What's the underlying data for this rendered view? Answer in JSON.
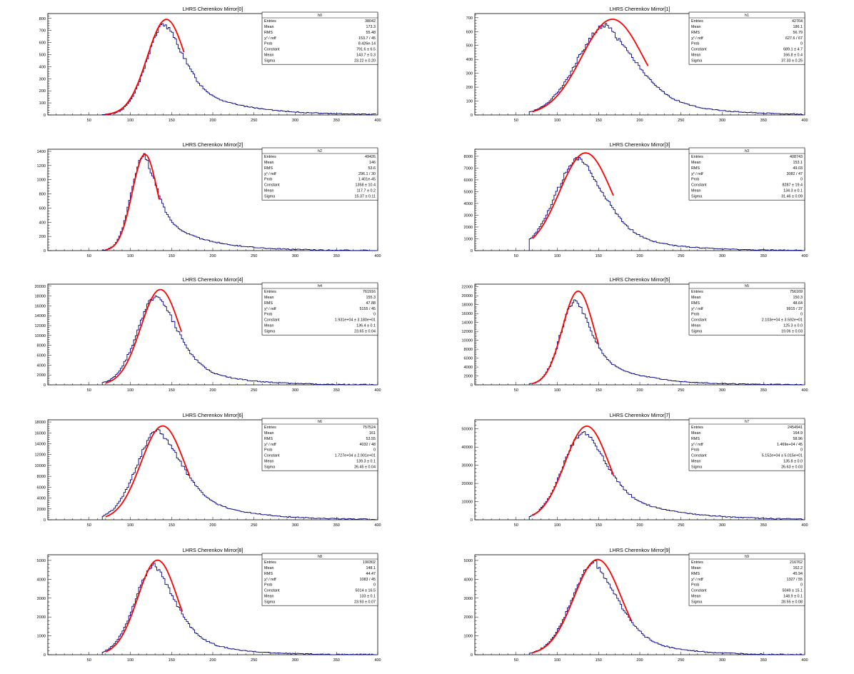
{
  "chart_data": [
    {
      "type": "histogram",
      "title": "LHRS Cherenkov Mirror[0]",
      "xlim": [
        0,
        400
      ],
      "xticks": [
        50,
        100,
        150,
        200,
        250,
        300,
        350,
        400
      ],
      "ylim": [
        0,
        840
      ],
      "yticks": [
        0,
        100,
        200,
        300,
        400,
        500,
        600,
        700,
        800
      ],
      "stats": {
        "name": "h0",
        "rows": [
          [
            "Entries",
            "38042"
          ],
          [
            "Mean",
            "173.3"
          ],
          [
            "RMS",
            "55.48"
          ],
          [
            "χ² / ndf",
            "153.7 / 45"
          ],
          [
            "Prob",
            "8.426e-14"
          ],
          [
            "Constant",
            "791.6 ± 6.5"
          ],
          [
            "Mean",
            "143.7 ± 0.3"
          ],
          [
            "Sigma",
            "23.22 ± 0.20"
          ]
        ]
      },
      "histogram": {
        "peak_x": 142,
        "peak_y": 752,
        "sigma_left": 22,
        "tail": 56
      },
      "fit": {
        "constant": 791.6,
        "mean": 143.7,
        "sigma": 23.22,
        "range": [
          70,
          165
        ]
      }
    },
    {
      "type": "histogram",
      "title": "LHRS Cherenkov Mirror[1]",
      "xlim": [
        0,
        400
      ],
      "xticks": [
        50,
        100,
        150,
        200,
        250,
        300,
        350,
        400
      ],
      "ylim": [
        0,
        730
      ],
      "yticks": [
        0,
        100,
        200,
        300,
        400,
        500,
        600,
        700
      ],
      "stats": {
        "name": "h1",
        "rows": [
          [
            "Entries",
            "42764"
          ],
          [
            "Mean",
            "186.1"
          ],
          [
            "RMS",
            "56.79"
          ],
          [
            "χ² / ndf",
            "627.6 / 67"
          ],
          [
            "Prob",
            "0"
          ],
          [
            "Constant",
            "689.1 ± 4.7"
          ],
          [
            "Mean",
            "166.8 ± 0.4"
          ],
          [
            "Sigma",
            "37.33 ± 0.25"
          ]
        ]
      },
      "histogram": {
        "peak_x": 160,
        "peak_y": 645,
        "sigma_left": 36,
        "tail": 58
      },
      "fit": {
        "constant": 689.1,
        "mean": 166.8,
        "sigma": 37.33,
        "range": [
          70,
          210
        ]
      }
    },
    {
      "type": "histogram",
      "title": "LHRS Cherenkov Mirror[2]",
      "xlim": [
        0,
        400
      ],
      "xticks": [
        50,
        100,
        150,
        200,
        250,
        300,
        350,
        400
      ],
      "ylim": [
        0,
        1430
      ],
      "yticks": [
        0,
        200,
        400,
        600,
        800,
        1000,
        1200,
        1400
      ],
      "stats": {
        "name": "h2",
        "rows": [
          [
            "Entries",
            "49426"
          ],
          [
            "Mean",
            "146"
          ],
          [
            "RMS",
            "53.6"
          ],
          [
            "χ² / ndf",
            "296.1 / 30"
          ],
          [
            "Prob",
            "1.401e-45"
          ],
          [
            "Constant",
            "1358 ± 10.4"
          ],
          [
            "Mean",
            "117.7 ± 0.2"
          ],
          [
            "Sigma",
            "15.37 ± 0.11"
          ]
        ]
      },
      "histogram": {
        "peak_x": 116,
        "peak_y": 1340,
        "sigma_left": 15,
        "tail": 48
      },
      "fit": {
        "constant": 1358,
        "mean": 117.7,
        "sigma": 15.37,
        "range": [
          70,
          135
        ]
      }
    },
    {
      "type": "histogram",
      "title": "LHRS Cherenkov Mirror[3]",
      "xlim": [
        0,
        400
      ],
      "xticks": [
        50,
        100,
        150,
        200,
        250,
        300,
        350,
        400
      ],
      "ylim": [
        0,
        8600
      ],
      "yticks": [
        0,
        1000,
        2000,
        3000,
        4000,
        5000,
        6000,
        7000,
        8000
      ],
      "stats": {
        "name": "h3",
        "rows": [
          [
            "Entries",
            "408743"
          ],
          [
            "Mean",
            "153.1"
          ],
          [
            "RMS",
            "49.03"
          ],
          [
            "χ² / ndf",
            "3082 / 47"
          ],
          [
            "Prob",
            "0"
          ],
          [
            "Constant",
            "8287 ± 19.4"
          ],
          [
            "Mean",
            "134.3 ± 0.1"
          ],
          [
            "Sigma",
            "31.46 ± 0.09"
          ]
        ]
      },
      "histogram": {
        "peak_x": 128,
        "peak_y": 7800,
        "sigma_left": 30,
        "tail": 50
      },
      "fit": {
        "constant": 8287,
        "mean": 134.3,
        "sigma": 31.46,
        "range": [
          70,
          168
        ]
      }
    },
    {
      "type": "histogram",
      "title": "LHRS Cherenkov Mirror[4]",
      "xlim": [
        0,
        400
      ],
      "xticks": [
        50,
        100,
        150,
        200,
        250,
        300,
        350,
        400
      ],
      "ylim": [
        0,
        20400
      ],
      "yticks": [
        0,
        2000,
        4000,
        6000,
        8000,
        10000,
        12000,
        14000,
        16000,
        18000,
        20000
      ],
      "stats": {
        "name": "h4",
        "rows": [
          [
            "Entries",
            "761916"
          ],
          [
            "Mean",
            "155.3"
          ],
          [
            "RMS",
            "47.88"
          ],
          [
            "χ² / ndf",
            "5155 / 45"
          ],
          [
            "Prob",
            "0"
          ],
          [
            "Constant",
            "1.931e+04 ± 3.180e+01"
          ],
          [
            "Mean",
            "136.4 ± 0.1"
          ],
          [
            "Sigma",
            "23.65 ± 0.04"
          ]
        ]
      },
      "histogram": {
        "peak_x": 133,
        "peak_y": 18200,
        "sigma_left": 24,
        "tail": 46
      },
      "fit": {
        "constant": 19310,
        "mean": 136.4,
        "sigma": 23.65,
        "range": [
          70,
          162
        ]
      }
    },
    {
      "type": "histogram",
      "title": "LHRS Cherenkov Mirror[5]",
      "xlim": [
        0,
        400
      ],
      "xticks": [
        50,
        100,
        150,
        200,
        250,
        300,
        350,
        400
      ],
      "ylim": [
        0,
        22600
      ],
      "yticks": [
        0,
        2000,
        4000,
        6000,
        8000,
        10000,
        12000,
        14000,
        16000,
        18000,
        20000,
        22000
      ],
      "stats": {
        "name": "h5",
        "rows": [
          [
            "Entries",
            "756169"
          ],
          [
            "Mean",
            "150.3"
          ],
          [
            "RMS",
            "48.64"
          ],
          [
            "χ² / ndf",
            "9915 / 37"
          ],
          [
            "Prob",
            "0"
          ],
          [
            "Constant",
            "2.103e+04 ± 3.592e+01"
          ],
          [
            "Mean",
            "125.3 ± 0.0"
          ],
          [
            "Sigma",
            "19.06 ± 0.03"
          ]
        ]
      },
      "histogram": {
        "peak_x": 122,
        "peak_y": 18800,
        "sigma_left": 18,
        "tail": 50
      },
      "fit": {
        "constant": 21030,
        "mean": 125.3,
        "sigma": 19.06,
        "range": [
          70,
          150
        ]
      }
    },
    {
      "type": "histogram",
      "title": "LHRS Cherenkov Mirror[6]",
      "xlim": [
        0,
        400
      ],
      "xticks": [
        50,
        100,
        150,
        200,
        250,
        300,
        350,
        400
      ],
      "ylim": [
        0,
        18400
      ],
      "yticks": [
        0,
        2000,
        4000,
        6000,
        8000,
        10000,
        12000,
        14000,
        16000,
        18000
      ],
      "stats": {
        "name": "h6",
        "rows": [
          [
            "Entries",
            "757524"
          ],
          [
            "Mean",
            "161"
          ],
          [
            "RMS",
            "53.55"
          ],
          [
            "χ² / ndf",
            "4032 / 48"
          ],
          [
            "Prob",
            "0"
          ],
          [
            "Constant",
            "1.727e+04 ± 2.901e+01"
          ],
          [
            "Mean",
            "139.3 ± 0.1"
          ],
          [
            "Sigma",
            "26.45 ± 0.04"
          ]
        ]
      },
      "histogram": {
        "peak_x": 135,
        "peak_y": 16500,
        "sigma_left": 27,
        "tail": 56
      },
      "fit": {
        "constant": 17270,
        "mean": 139.3,
        "sigma": 26.45,
        "range": [
          70,
          172
        ]
      }
    },
    {
      "type": "histogram",
      "title": "LHRS Cherenkov Mirror[7]",
      "xlim": [
        0,
        400
      ],
      "xticks": [
        50,
        100,
        150,
        200,
        250,
        300,
        350,
        400
      ],
      "ylim": [
        0,
        55000
      ],
      "yticks": [
        0,
        10000,
        20000,
        30000,
        40000,
        50000
      ],
      "stats": {
        "name": "h7",
        "rows": [
          [
            "Entries",
            "2454941"
          ],
          [
            "Mean",
            "164.9"
          ],
          [
            "RMS",
            "58.96"
          ],
          [
            "χ² / ndf",
            "1.469e+04 / 45"
          ],
          [
            "Prob",
            "0"
          ],
          [
            "Constant",
            "5.152e+04 ± 5.015e+01"
          ],
          [
            "Mean",
            "135.8 ± 0.0"
          ],
          [
            "Sigma",
            "26.63 ± 0.03"
          ]
        ]
      },
      "histogram": {
        "peak_x": 133,
        "peak_y": 48500,
        "sigma_left": 26,
        "tail": 62
      },
      "fit": {
        "constant": 51520,
        "mean": 135.8,
        "sigma": 26.63,
        "range": [
          70,
          168
        ]
      }
    },
    {
      "type": "histogram",
      "title": "LHRS Cherenkov Mirror[8]",
      "xlim": [
        0,
        400
      ],
      "xticks": [
        50,
        100,
        150,
        200,
        250,
        300,
        350,
        400
      ],
      "ylim": [
        0,
        5300
      ],
      "yticks": [
        0,
        1000,
        2000,
        3000,
        4000,
        5000
      ],
      "stats": {
        "name": "h8",
        "rows": [
          [
            "Entries",
            "190302"
          ],
          [
            "Mean",
            "148.1"
          ],
          [
            "RMS",
            "44.47"
          ],
          [
            "χ² / ndf",
            "1083 / 45"
          ],
          [
            "Prob",
            "0"
          ],
          [
            "Constant",
            "5014 ± 16.5"
          ],
          [
            "Mean",
            "133 ± 0.1"
          ],
          [
            "Sigma",
            "23.93 ± 0.07"
          ]
        ]
      },
      "histogram": {
        "peak_x": 130,
        "peak_y": 4750,
        "sigma_left": 24,
        "tail": 44
      },
      "fit": {
        "constant": 5014,
        "mean": 133,
        "sigma": 23.93,
        "range": [
          70,
          163
        ]
      }
    },
    {
      "type": "histogram",
      "title": "LHRS Cherenkov Mirror[9]",
      "xlim": [
        0,
        400
      ],
      "xticks": [
        50,
        100,
        150,
        200,
        250,
        300,
        350,
        400
      ],
      "ylim": [
        0,
        5300
      ],
      "yticks": [
        0,
        1000,
        2000,
        3000,
        4000,
        5000
      ],
      "stats": {
        "name": "h9",
        "rows": [
          [
            "Entries",
            "216762"
          ],
          [
            "Mean",
            "162.2"
          ],
          [
            "RMS",
            "45.94"
          ],
          [
            "χ² / ndf",
            "1327 / 55"
          ],
          [
            "Prob",
            "0"
          ],
          [
            "Constant",
            "5049 ± 15.1"
          ],
          [
            "Mean",
            "148.9 ± 0.1"
          ],
          [
            "Sigma",
            "28.55 ± 0.08"
          ]
        ]
      },
      "histogram": {
        "peak_x": 146,
        "peak_y": 4900,
        "sigma_left": 28,
        "tail": 46
      },
      "fit": {
        "constant": 5049,
        "mean": 148.9,
        "sigma": 28.55,
        "range": [
          70,
          190
        ]
      }
    }
  ]
}
